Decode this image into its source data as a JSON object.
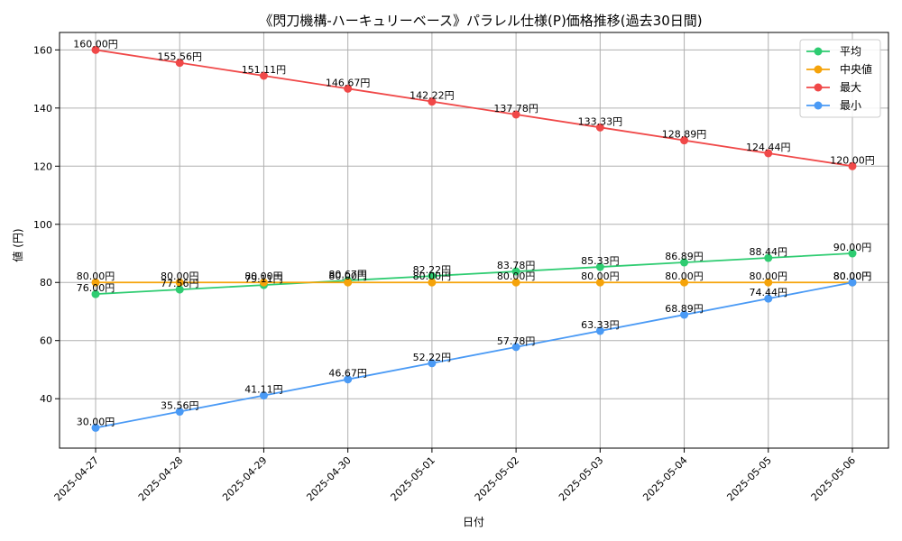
{
  "chart_data": {
    "type": "line",
    "title": "《閃刀機構-ハーキュリーベース》パラレル仕様(P)価格推移(過去30日間)",
    "xlabel": "日付",
    "ylabel": "値 (円)",
    "categories": [
      "2025-04-27",
      "2025-04-28",
      "2025-04-29",
      "2025-04-30",
      "2025-05-01",
      "2025-05-02",
      "2025-05-03",
      "2025-05-04",
      "2025-05-05",
      "2025-05-06"
    ],
    "ylim": [
      23,
      166
    ],
    "yticks": [
      40,
      60,
      80,
      100,
      120,
      140,
      160
    ],
    "grid": true,
    "legend_position": "top-right",
    "value_suffix": "円",
    "series": [
      {
        "name": "平均",
        "color": "#2ecc71",
        "values": [
          76.0,
          77.56,
          79.11,
          80.67,
          82.22,
          83.78,
          85.33,
          86.89,
          88.44,
          90.0
        ],
        "labels": [
          "76.00円",
          "77.56円",
          "79.11円",
          "80.67円",
          "82.22円",
          "83.78円",
          "85.33円",
          "86.89円",
          "88.44円",
          "90.00円"
        ]
      },
      {
        "name": "中央値",
        "color": "#f5a30a",
        "values": [
          80,
          80,
          80,
          80,
          80,
          80,
          80,
          80,
          80,
          80
        ],
        "labels": [
          "80.00円",
          "80.00円",
          "80.00円",
          "80.00円",
          "80.00円",
          "80.00円",
          "80.00円",
          "80.00円",
          "80.00円",
          "80.00円"
        ]
      },
      {
        "name": "最大",
        "color": "#f04848",
        "values": [
          160.0,
          155.56,
          151.11,
          146.67,
          142.22,
          137.78,
          133.33,
          128.89,
          124.44,
          120.0
        ],
        "labels": [
          "160.00円",
          "155.56円",
          "151.11円",
          "146.67円",
          "142.22円",
          "137.78円",
          "133.33円",
          "128.89円",
          "124.44円",
          "120.00円"
        ]
      },
      {
        "name": "最小",
        "color": "#4a9af5",
        "values": [
          30.0,
          35.56,
          41.11,
          46.67,
          52.22,
          57.78,
          63.33,
          68.89,
          74.44,
          80.0
        ],
        "labels": [
          "30.00円",
          "35.56円",
          "41.11円",
          "46.67円",
          "52.22円",
          "57.78円",
          "63.33円",
          "68.89円",
          "74.44円",
          "80.00円"
        ]
      }
    ]
  }
}
